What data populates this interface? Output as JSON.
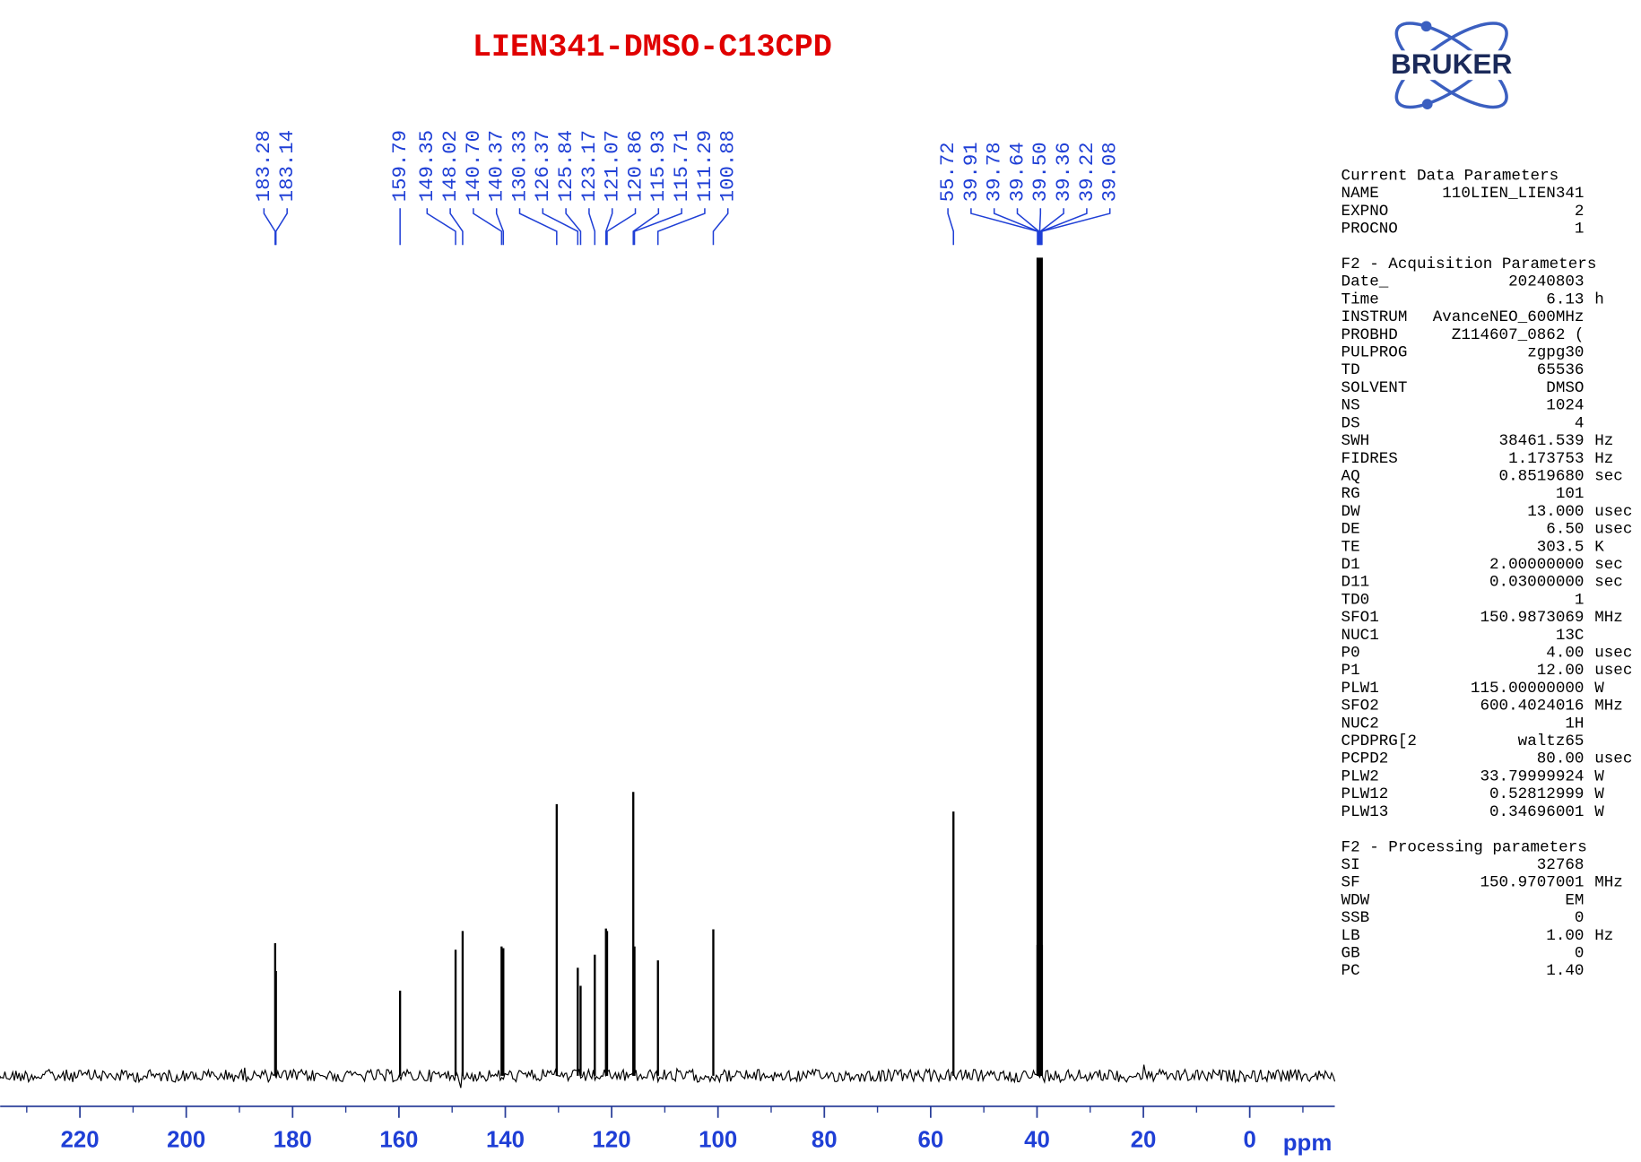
{
  "chart_data": {
    "type": "nmr-spectrum",
    "title": "LIEN341-DMSO-C13CPD",
    "x_label": "ppm",
    "xlim": [
      235,
      -16
    ],
    "xticks": [
      220,
      200,
      180,
      160,
      140,
      120,
      100,
      80,
      60,
      40,
      20,
      0
    ],
    "xminorticks": [
      230,
      210,
      190,
      170,
      150,
      130,
      110,
      90,
      70,
      50,
      30,
      10,
      -10
    ],
    "ylim": [
      0,
      100
    ],
    "peak_color": "#000000",
    "label_color": "#1f3fd6",
    "peaks": {
      "x": [
        183.28,
        183.14,
        159.79,
        149.35,
        148.02,
        140.7,
        140.37,
        130.33,
        126.37,
        125.84,
        123.17,
        121.07,
        120.86,
        115.93,
        115.71,
        111.29,
        100.88,
        55.72,
        39.91,
        39.78,
        39.64,
        39.5,
        39.36,
        39.22,
        39.08
      ],
      "labels": [
        "183.28",
        "183.14",
        "159.79",
        "149.35",
        "148.02",
        "140.70",
        "140.37",
        "130.33",
        "126.37",
        "125.84",
        "123.17",
        "121.07",
        "120.86",
        "115.93",
        "115.71",
        "111.29",
        "100.88",
        "55.72",
        "39.91",
        "39.78",
        "39.64",
        "39.50",
        "39.36",
        "39.22",
        "39.08"
      ],
      "values": [
        16.2,
        12.8,
        10.4,
        15.4,
        17.7,
        15.8,
        15.6,
        33.2,
        13.2,
        11.0,
        14.8,
        18.0,
        17.7,
        34.7,
        15.8,
        14.1,
        17.9,
        32.3,
        16,
        45,
        80,
        100,
        80,
        45,
        16
      ]
    }
  },
  "logo": "BRUKER",
  "parameters": [
    {
      "title": "Current Data Parameters",
      "rows": [
        [
          "NAME",
          "110LIEN_LIEN341"
        ],
        [
          "EXPNO",
          "2"
        ],
        [
          "PROCNO",
          "1"
        ]
      ]
    },
    {
      "title": "F2 - Acquisition Parameters",
      "rows": [
        [
          "Date_",
          "20240803"
        ],
        [
          "Time",
          "6.13",
          "h"
        ],
        [
          "INSTRUM",
          "AvanceNEO_600MHz"
        ],
        [
          "PROBHD",
          "Z114607_0862 ("
        ],
        [
          "PULPROG",
          "zgpg30"
        ],
        [
          "TD",
          "65536"
        ],
        [
          "SOLVENT",
          "DMSO"
        ],
        [
          "NS",
          "1024"
        ],
        [
          "DS",
          "4"
        ],
        [
          "SWH",
          "38461.539",
          "Hz"
        ],
        [
          "FIDRES",
          "1.173753",
          "Hz"
        ],
        [
          "AQ",
          "0.8519680",
          "sec"
        ],
        [
          "RG",
          "101"
        ],
        [
          "DW",
          "13.000",
          "usec"
        ],
        [
          "DE",
          "6.50",
          "usec"
        ],
        [
          "TE",
          "303.5",
          "K"
        ],
        [
          "D1",
          "2.00000000",
          "sec"
        ],
        [
          "D11",
          "0.03000000",
          "sec"
        ],
        [
          "TD0",
          "1"
        ],
        [
          "SFO1",
          "150.9873069",
          "MHz"
        ],
        [
          "NUC1",
          "13C"
        ],
        [
          "P0",
          "4.00",
          "usec"
        ],
        [
          "P1",
          "12.00",
          "usec"
        ],
        [
          "PLW1",
          "115.00000000",
          "W"
        ],
        [
          "SFO2",
          "600.4024016",
          "MHz"
        ],
        [
          "NUC2",
          "1H"
        ],
        [
          "CPDPRG[2",
          "waltz65"
        ],
        [
          "PCPD2",
          "80.00",
          "usec"
        ],
        [
          "PLW2",
          "33.79999924",
          "W"
        ],
        [
          "PLW12",
          "0.52812999",
          "W"
        ],
        [
          "PLW13",
          "0.34696001",
          "W"
        ]
      ]
    },
    {
      "title": "F2 - Processing parameters",
      "rows": [
        [
          "SI",
          "32768"
        ],
        [
          "SF",
          "150.9707001",
          "MHz"
        ],
        [
          "WDW",
          "EM"
        ],
        [
          "SSB",
          "0"
        ],
        [
          "LB",
          "1.00",
          "Hz"
        ],
        [
          "GB",
          "0"
        ],
        [
          "PC",
          "1.40"
        ]
      ]
    }
  ]
}
